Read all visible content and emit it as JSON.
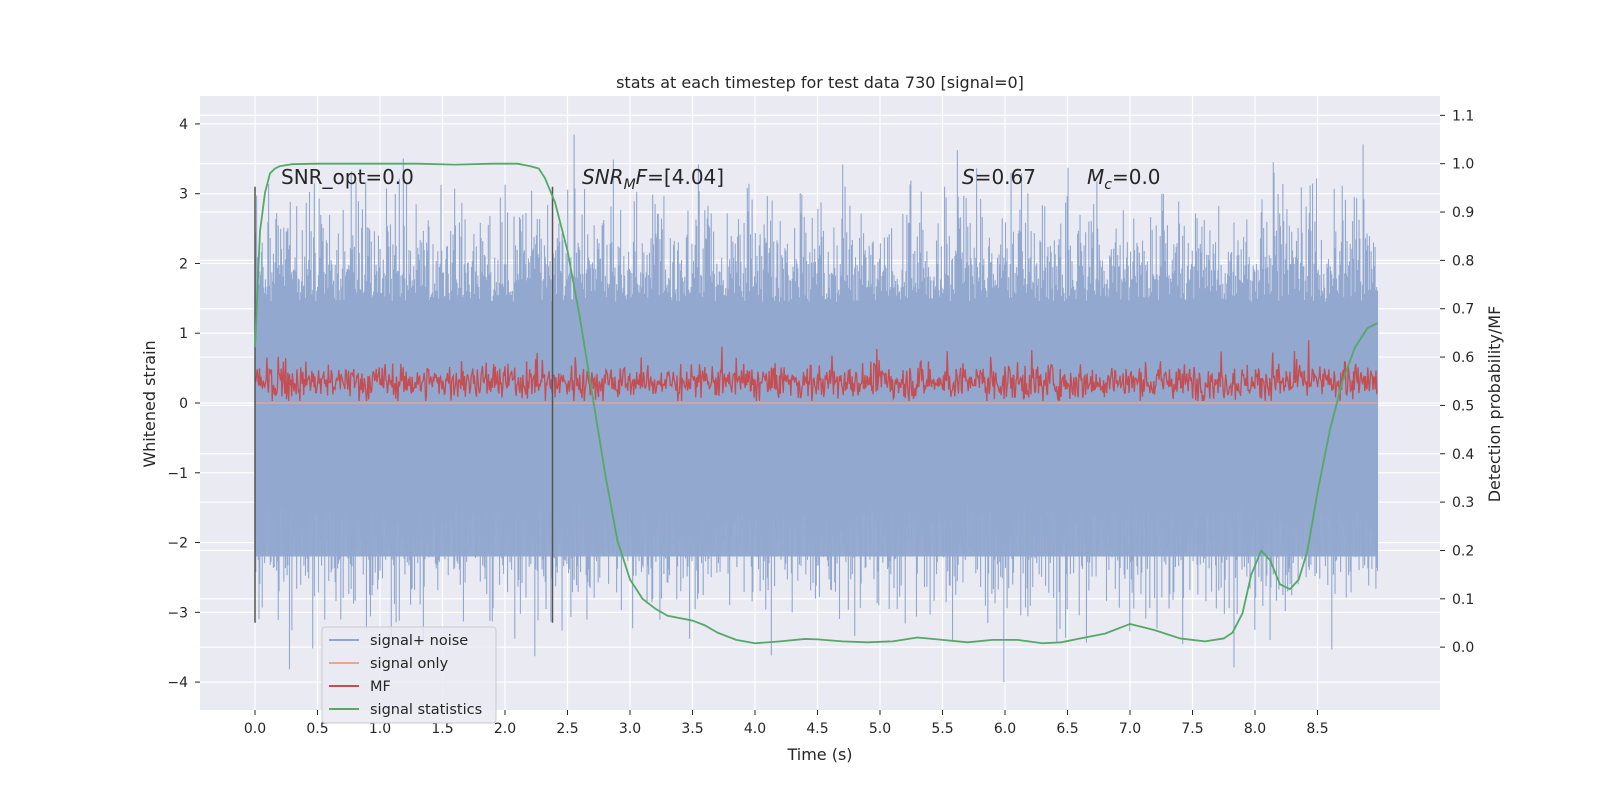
{
  "chart_data": {
    "type": "line",
    "title": "stats at each timestep for test data 730 [signal=0]",
    "xlabel": "Time (s)",
    "ylabel_left": "Whitened strain",
    "ylabel_right": "Detection probability/MF",
    "xlim": [
      -0.44,
      9.48
    ],
    "ylim_left": [
      -4.4,
      4.4
    ],
    "ylim_right": [
      -0.13,
      1.14
    ],
    "x_ticks": [
      "0.0",
      "0.5",
      "1.0",
      "1.5",
      "2.0",
      "2.5",
      "3.0",
      "3.5",
      "4.0",
      "4.5",
      "5.0",
      "5.5",
      "6.0",
      "6.5",
      "7.0",
      "7.5",
      "8.0",
      "8.5"
    ],
    "x_tick_values": [
      0,
      0.5,
      1,
      1.5,
      2,
      2.5,
      3,
      3.5,
      4,
      4.5,
      5,
      5.5,
      6,
      6.5,
      7,
      7.5,
      8,
      8.5
    ],
    "y_ticks_left": [
      "−4",
      "−3",
      "−2",
      "−1",
      "0",
      "1",
      "2",
      "3",
      "4"
    ],
    "y_tick_values_left": [
      -4,
      -3,
      -2,
      -1,
      0,
      1,
      2,
      3,
      4
    ],
    "y_ticks_right": [
      "0.0",
      "0.1",
      "0.2",
      "0.3",
      "0.4",
      "0.5",
      "0.6",
      "0.7",
      "0.8",
      "0.9",
      "1.0",
      "1.1"
    ],
    "y_tick_values_right": [
      0,
      0.1,
      0.2,
      0.3,
      0.4,
      0.5,
      0.6,
      0.7,
      0.8,
      0.9,
      1.0,
      1.1
    ],
    "annotations": {
      "snr_opt": "SNR_opt=0.0",
      "snr_mf_main": "SNR",
      "snr_mf_sub": "M",
      "snr_mf_rest": "F=[4.04]",
      "s_var": "S",
      "s_rest": "=0.67",
      "mc_var": "M",
      "mc_sub": "c",
      "mc_rest": "=0.0"
    },
    "vertical_markers": [
      {
        "x": 0.0,
        "y_range": [
          -3.15,
          3.1
        ]
      },
      {
        "x": 2.38,
        "y_range": [
          -3.15,
          3.1
        ]
      }
    ],
    "series": [
      {
        "name": "signal+ noise",
        "color": "#8fa6cc",
        "axis": "left",
        "description": "whitened noise, amplitude roughly ±3, peaks to ±4"
      },
      {
        "name": "signal only",
        "color": "#e8a890",
        "axis": "left",
        "values_constant": 0
      },
      {
        "name": "MF",
        "color": "#c44e52",
        "axis": "left",
        "description": "matched filter output roughly between 0.05 and 1.0"
      },
      {
        "name": "signal statistics",
        "color": "#55a868",
        "axis": "right",
        "x": [
          0.0,
          0.04,
          0.08,
          0.12,
          0.16,
          0.2,
          0.3,
          0.5,
          0.8,
          1.0,
          1.3,
          1.6,
          1.9,
          2.1,
          2.2,
          2.27,
          2.32,
          2.4,
          2.5,
          2.6,
          2.7,
          2.8,
          2.9,
          3.0,
          3.1,
          3.2,
          3.3,
          3.5,
          3.6,
          3.7,
          3.85,
          4.0,
          4.2,
          4.4,
          4.5,
          4.7,
          4.9,
          5.1,
          5.3,
          5.5,
          5.7,
          5.9,
          6.1,
          6.3,
          6.45,
          6.6,
          6.8,
          7.0,
          7.2,
          7.4,
          7.6,
          7.75,
          7.82,
          7.9,
          7.97,
          8.05,
          8.12,
          8.2,
          8.28,
          8.35,
          8.42,
          8.5,
          8.6,
          8.7,
          8.8,
          8.9,
          8.98
        ],
        "y": [
          0.62,
          0.86,
          0.94,
          0.98,
          0.99,
          0.995,
          0.999,
          1.0,
          1.0,
          1.0,
          1.0,
          0.998,
          1.0,
          1.0,
          0.995,
          0.99,
          0.97,
          0.92,
          0.82,
          0.68,
          0.52,
          0.36,
          0.22,
          0.14,
          0.1,
          0.08,
          0.065,
          0.055,
          0.045,
          0.03,
          0.015,
          0.008,
          0.012,
          0.017,
          0.016,
          0.012,
          0.01,
          0.012,
          0.02,
          0.015,
          0.01,
          0.015,
          0.015,
          0.008,
          0.01,
          0.018,
          0.028,
          0.048,
          0.035,
          0.018,
          0.012,
          0.018,
          0.03,
          0.07,
          0.15,
          0.2,
          0.18,
          0.13,
          0.12,
          0.14,
          0.2,
          0.32,
          0.45,
          0.55,
          0.62,
          0.66,
          0.67
        ]
      }
    ],
    "legend": {
      "position": "lower-left",
      "entries": [
        "signal+ noise",
        "signal only",
        "MF",
        "signal statistics"
      ]
    },
    "noise_span": [
      0.0,
      8.98
    ],
    "grid": true
  }
}
